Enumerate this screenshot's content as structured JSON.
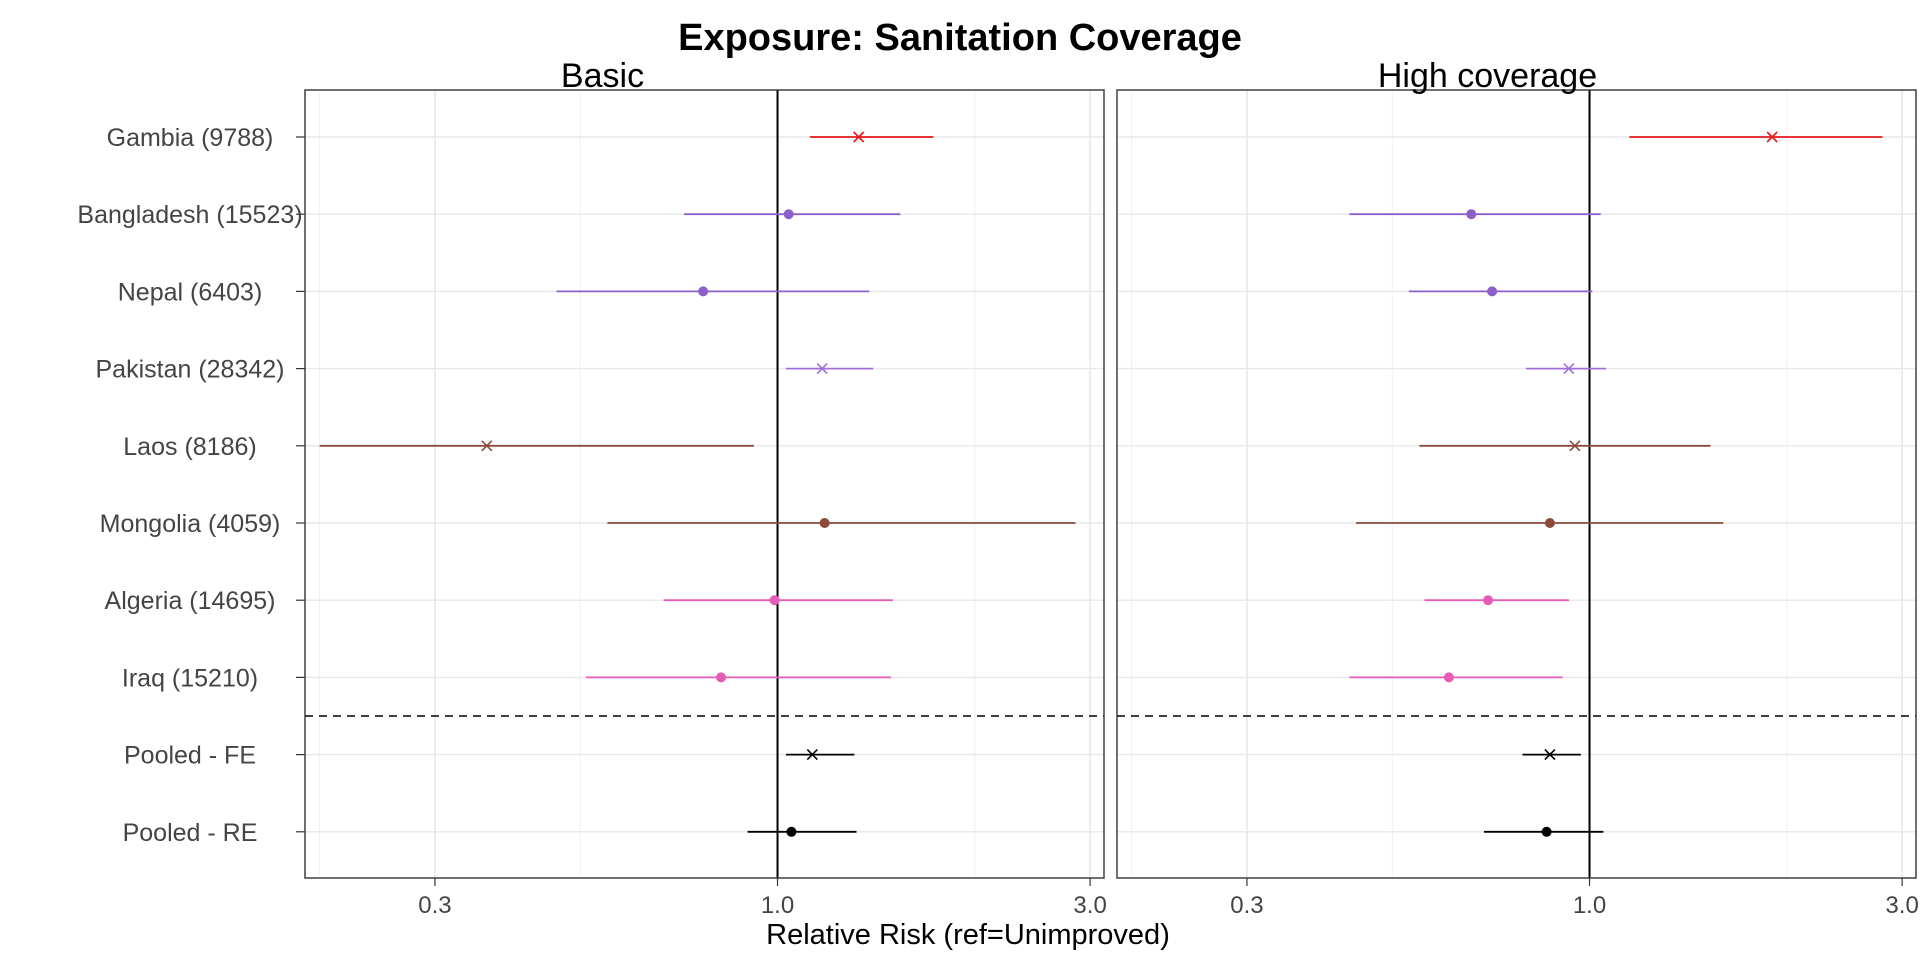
{
  "chart_data": {
    "type": "scatter",
    "subtype": "forest-plot",
    "title": "Exposure: Sanitation Coverage",
    "xlabel": "Relative Risk (ref=Unimproved)",
    "x_scale": "log",
    "xlim": [
      0.19,
      3.15
    ],
    "x_ticks": [
      0.3,
      1.0,
      3.0
    ],
    "x_tick_labels": [
      "0.3",
      "1.0",
      "3.0"
    ],
    "reference_line": 1.0,
    "grid": true,
    "legend": "none",
    "categories": [
      "Gambia (9788)",
      "Bangladesh (15523)",
      "Nepal (6403)",
      "Pakistan (28342)",
      "Laos (8186)",
      "Mongolia (4059)",
      "Algeria (14695)",
      "Iraq (15210)",
      "Pooled - FE",
      "Pooled - RE"
    ],
    "colors": [
      "#e41a1c",
      "#8c5fc9",
      "#8c5fc9",
      "#a070d8",
      "#8b4a3c",
      "#8b4a3c",
      "#e55bb5",
      "#e55bb5",
      "#000000",
      "#000000"
    ],
    "markers": [
      "x",
      "o",
      "o",
      "x",
      "x",
      "o",
      "o",
      "o",
      "x",
      "o"
    ],
    "panels": [
      {
        "name": "Basic",
        "estimate": [
          1.33,
          1.04,
          0.77,
          1.17,
          0.36,
          1.18,
          0.99,
          0.82,
          1.13,
          1.05
        ],
        "lower": [
          1.12,
          0.72,
          0.46,
          1.03,
          0.2,
          0.55,
          0.67,
          0.51,
          1.03,
          0.9
        ],
        "upper": [
          1.73,
          1.54,
          1.38,
          1.4,
          0.92,
          2.85,
          1.5,
          1.49,
          1.31,
          1.32
        ]
      },
      {
        "name": "High coverage",
        "estimate": [
          1.9,
          0.66,
          0.71,
          0.93,
          0.95,
          0.87,
          0.7,
          0.61,
          0.87,
          0.86
        ],
        "lower": [
          1.15,
          0.43,
          0.53,
          0.8,
          0.55,
          0.44,
          0.56,
          0.43,
          0.79,
          0.69
        ],
        "upper": [
          2.8,
          1.04,
          1.01,
          1.06,
          1.53,
          1.6,
          0.93,
          0.91,
          0.97,
          1.05
        ]
      }
    ]
  }
}
